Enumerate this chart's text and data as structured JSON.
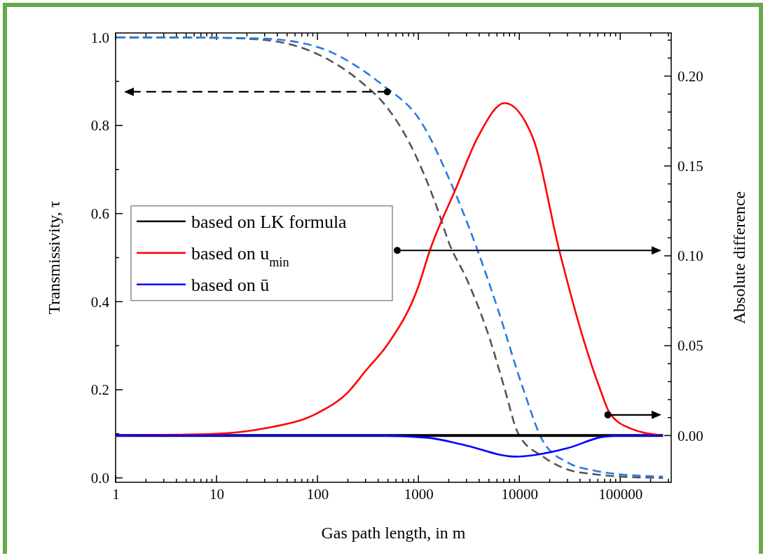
{
  "chart_data": {
    "type": "line",
    "xlabel": "Gas path length, in m",
    "ylabel": "Transmissivity, τ",
    "y2label": "Absolute difference",
    "log": "x",
    "legend": "left",
    "grid": false,
    "xlim": [
      1,
      320000
    ],
    "xticks": [
      1,
      {
        "value": 2,
        "label": null
      },
      {
        "value": 3,
        "label": null
      },
      {
        "value": 4,
        "label": null
      },
      {
        "value": 5,
        "label": null
      },
      {
        "value": 6,
        "label": null
      },
      {
        "value": 7,
        "label": null
      },
      {
        "value": 8,
        "label": null
      },
      {
        "value": 9,
        "label": null
      },
      10,
      {
        "value": 20,
        "label": null
      },
      {
        "value": 30,
        "label": null
      },
      {
        "value": 40,
        "label": null
      },
      {
        "value": 50,
        "label": null
      },
      {
        "value": 60,
        "label": null
      },
      {
        "value": 70,
        "label": null
      },
      {
        "value": 80,
        "label": null
      },
      {
        "value": 90,
        "label": null
      },
      100,
      {
        "value": 200,
        "label": null
      },
      {
        "value": 300,
        "label": null
      },
      {
        "value": 400,
        "label": null
      },
      {
        "value": 500,
        "label": null
      },
      {
        "value": 600,
        "label": null
      },
      {
        "value": 700,
        "label": null
      },
      {
        "value": 800,
        "label": null
      },
      {
        "value": 900,
        "label": null
      },
      1000,
      {
        "value": 2000,
        "label": null
      },
      {
        "value": 3000,
        "label": null
      },
      {
        "value": 4000,
        "label": null
      },
      {
        "value": 5000,
        "label": null
      },
      {
        "value": 6000,
        "label": null
      },
      {
        "value": 7000,
        "label": null
      },
      {
        "value": 8000,
        "label": null
      },
      {
        "value": 9000,
        "label": null
      },
      10000,
      {
        "value": 20000,
        "label": null
      },
      {
        "value": 30000,
        "label": null
      },
      {
        "value": 40000,
        "label": null
      },
      {
        "value": 50000,
        "label": null
      },
      {
        "value": 60000,
        "label": null
      },
      {
        "value": 70000,
        "label": null
      },
      {
        "value": 80000,
        "label": null
      },
      {
        "value": 90000,
        "label": null
      },
      100000,
      {
        "value": 200000,
        "label": null
      },
      {
        "value": 300000,
        "label": null
      }
    ],
    "ylim": [
      -0.01,
      1.01
    ],
    "yticks": [
      {
        "value": 0,
        "label": "0.0"
      },
      {
        "value": 0.1,
        "label": null
      },
      0.2,
      {
        "value": 0.3,
        "label": null
      },
      0.4,
      {
        "value": 0.5,
        "label": null
      },
      0.6,
      {
        "value": 0.7,
        "label": null
      },
      0.8,
      {
        "value": 0.9,
        "label": null
      },
      {
        "value": 1,
        "label": "1.0"
      }
    ],
    "y2lim": [
      -0.026,
      0.224
    ],
    "y2ticks": [
      {
        "value": 0,
        "label": "0.00"
      },
      {
        "value": 0.01,
        "label": null
      },
      {
        "value": 0.02,
        "label": null
      },
      {
        "value": 0.03,
        "label": null
      },
      {
        "value": 0.04,
        "label": null
      },
      {
        "value": 0.05,
        "label": "0.05"
      },
      {
        "value": 0.06,
        "label": null
      },
      {
        "value": 0.07,
        "label": null
      },
      {
        "value": 0.08,
        "label": null
      },
      {
        "value": 0.09,
        "label": null
      },
      {
        "value": 0.1,
        "label": "0.10"
      },
      {
        "value": 0.11,
        "label": null
      },
      {
        "value": 0.12,
        "label": null
      },
      {
        "value": 0.13,
        "label": null
      },
      {
        "value": 0.14,
        "label": null
      },
      {
        "value": 0.15,
        "label": "0.15"
      },
      {
        "value": 0.16,
        "label": null
      },
      {
        "value": 0.17,
        "label": null
      },
      {
        "value": 0.18,
        "label": null
      },
      {
        "value": 0.19,
        "label": null
      },
      {
        "value": 0.2,
        "label": "0.20"
      },
      {
        "value": 0.21,
        "label": null
      },
      {
        "value": 0.22,
        "label": null
      }
    ],
    "series": [
      {
        "color": "#555555",
        "line_style": "dashed",
        "x": [
          1,
          10,
          30,
          100,
          200,
          300,
          435,
          826,
          1565,
          1990,
          3060,
          5190,
          7000,
          9840,
          17200,
          30100,
          57100,
          100000,
          265000
        ],
        "values": [
          1.0,
          0.999,
          0.994,
          0.962,
          0.922,
          0.89,
          0.855,
          0.758,
          0.607,
          0.536,
          0.448,
          0.31,
          0.21,
          0.099,
          0.048,
          0.019,
          0.008,
          0.003,
          0.0
        ]
      },
      {
        "color": "#2a7ae2",
        "line_style": "dashed",
        "x": [
          1,
          10,
          30,
          110,
          250,
          435,
          1050,
          2086,
          3770,
          6090,
          11000,
          17200,
          30100,
          57100,
          100000,
          265000
        ],
        "values": [
          1.0,
          0.999,
          0.997,
          0.975,
          0.933,
          0.893,
          0.81,
          0.671,
          0.523,
          0.385,
          0.2,
          0.083,
          0.035,
          0.016,
          0.008,
          0.003
        ]
      },
      {
        "name": "based on LK formula",
        "color": "#000000",
        "axis": "y2",
        "line_style": "solid",
        "x": [
          1,
          265000
        ],
        "values": [
          0,
          0
        ]
      },
      {
        "name": "based on u$_{min}$",
        "color": "#ff0000",
        "axis": "y2",
        "line_style": "solid",
        "x": [
          1,
          10,
          30,
          100,
          200,
          300,
          500,
          1000,
          1300,
          2335,
          3960,
          7150,
          13550,
          24900,
          43500,
          63900,
          78700,
          126000,
          265000
        ],
        "values": [
          0,
          0.001,
          0.004,
          0.0125,
          0.024,
          0.036,
          0.051,
          0.083,
          0.103,
          0.137,
          0.167,
          0.185,
          0.166,
          0.103,
          0.053,
          0.025,
          0.0125,
          0.004,
          0
        ]
      },
      {
        "name": "based on ū",
        "color": "#0000ff",
        "axis": "y2",
        "line_style": "solid",
        "x": [
          1,
          100,
          400,
          1230,
          2740,
          9080,
          30100,
          66000,
          100000,
          265000
        ],
        "values": [
          0,
          0,
          0,
          -0.0012,
          -0.005,
          -0.0117,
          -0.007,
          -0.0008,
          0,
          0
        ]
      }
    ]
  }
}
